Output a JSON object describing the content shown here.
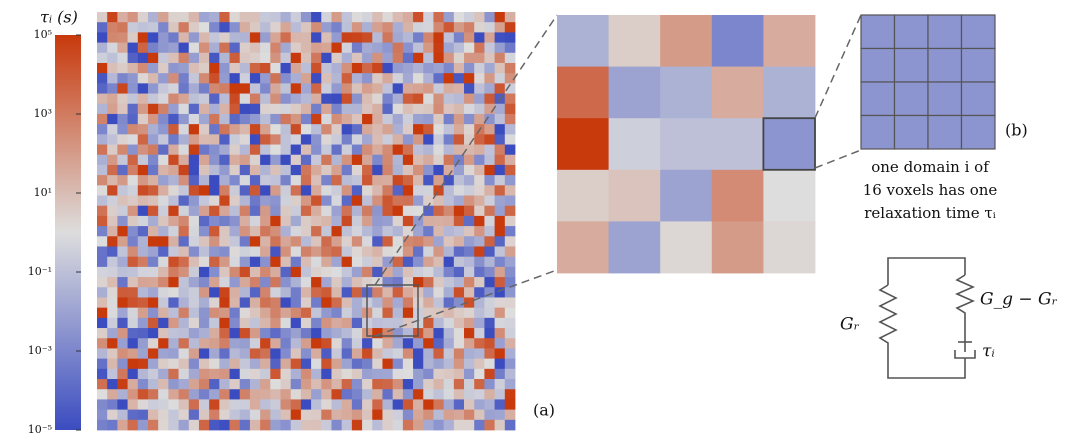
{
  "colorbar": {
    "label": "τᵢ (s)",
    "lim": [
      -5,
      5
    ],
    "colors": [
      "#3b4cc0",
      "#dddddd",
      "#c8390c"
    ],
    "ticks": [
      {
        "value": 5,
        "label": "10⁵"
      },
      {
        "value": 3,
        "label": "10³"
      },
      {
        "value": 1,
        "label": "10¹"
      },
      {
        "value": -1,
        "label": "10⁻¹"
      },
      {
        "value": -3,
        "label": "10⁻³"
      },
      {
        "value": -5,
        "label": "10⁻⁵"
      }
    ]
  },
  "panel_a": {
    "label": "(a)"
  },
  "zoom": {
    "rows": [
      [
        -1.5,
        0.5,
        2,
        -3,
        1.5
      ],
      [
        3.5,
        -2,
        -1.5,
        1.5,
        -1.5
      ],
      [
        5,
        -0.5,
        -1,
        -1,
        -2.5
      ],
      [
        0.5,
        0.8,
        -2,
        2.5,
        0
      ],
      [
        1.5,
        -2,
        0.2,
        2,
        0.2
      ]
    ],
    "highlight": [
      2,
      4
    ]
  },
  "panel_b": {
    "label": "(b)",
    "caption": [
      "one domain i of",
      "16 voxels has one",
      "relaxation time τᵢ"
    ]
  },
  "circuit": {
    "left": "Gᵣ",
    "right": "G_g − Gᵣ",
    "dashpot": "τᵢ"
  }
}
